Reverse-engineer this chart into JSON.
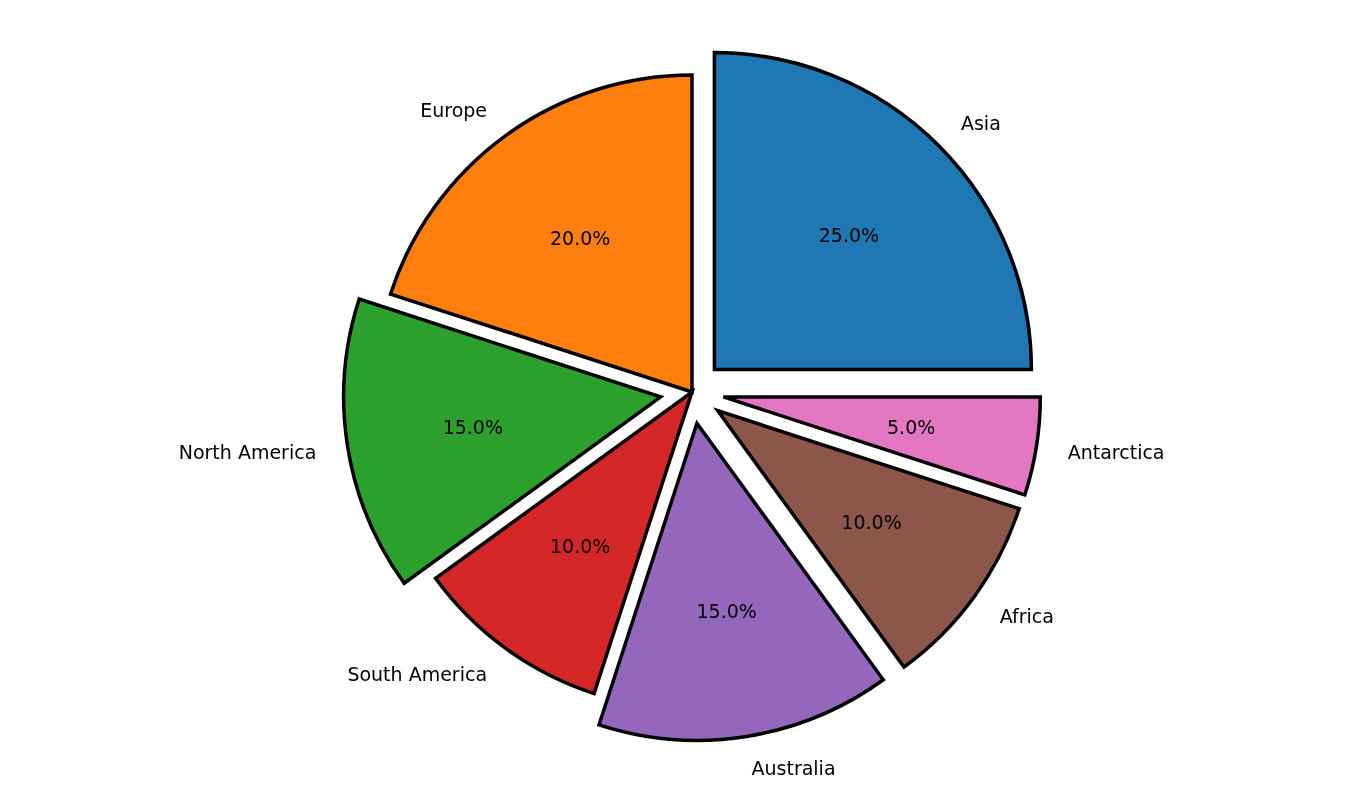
{
  "chart_data": {
    "type": "pie",
    "categories": [
      "Asia",
      "Europe",
      "North America",
      "South America",
      "Australia",
      "Africa",
      "Antarctica"
    ],
    "values": [
      25,
      20,
      15,
      10,
      15,
      10,
      5
    ],
    "value_labels": [
      "25.0%",
      "20.0%",
      "15.0%",
      "10.0%",
      "15.0%",
      "10.0%",
      "5.0%"
    ],
    "colors": [
      "#1f77b4",
      "#ff7f0e",
      "#2ca02c",
      "#d62728",
      "#9467bd",
      "#8c564b",
      "#e377c2"
    ]
  }
}
